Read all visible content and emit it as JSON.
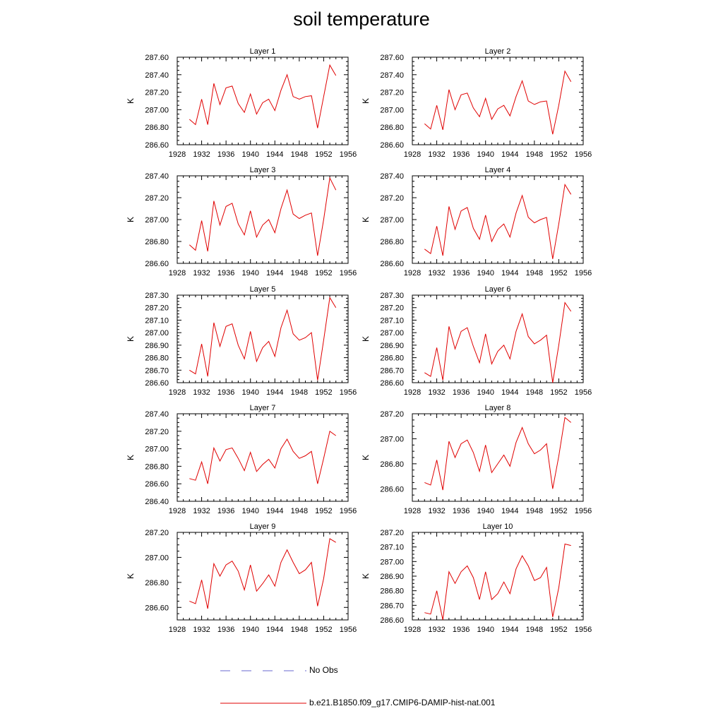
{
  "figure": {
    "title": "soil temperature"
  },
  "legend": {
    "items": [
      {
        "label": "No Obs",
        "color": "#6a6ad0",
        "style": "dashed"
      },
      {
        "label": "b.e21.B1850.f09_g17.CMIP6-DAMIP-hist-nat.001",
        "color": "#e00000",
        "style": "solid"
      }
    ]
  },
  "chart_data": [
    {
      "type": "line",
      "title": "Layer 1",
      "ylabel": "K",
      "xlim": [
        1928,
        1956
      ],
      "ylim": [
        286.6,
        287.6
      ],
      "xticks": [
        "1928",
        "1932",
        "1936",
        "1940",
        "1944",
        "1948",
        "1952",
        "1956"
      ],
      "yticks": [
        "286.60",
        "286.80",
        "287.00",
        "287.20",
        "287.40",
        "287.60"
      ],
      "x": [
        1930,
        1931,
        1932,
        1933,
        1934,
        1935,
        1936,
        1937,
        1938,
        1939,
        1940,
        1941,
        1942,
        1943,
        1944,
        1945,
        1946,
        1947,
        1948,
        1949,
        1950,
        1951,
        1952,
        1953,
        1954
      ],
      "series": [
        {
          "name": "b.e21.B1850.f09_g17.CMIP6-DAMIP-hist-nat.001",
          "color": "#e00000",
          "values": [
            286.89,
            286.83,
            287.12,
            286.83,
            287.3,
            287.06,
            287.25,
            287.27,
            287.07,
            286.97,
            287.18,
            286.95,
            287.08,
            287.12,
            286.99,
            287.22,
            287.4,
            287.15,
            287.12,
            287.15,
            287.16,
            286.79,
            287.15,
            287.51,
            287.39
          ]
        }
      ]
    },
    {
      "type": "line",
      "title": "Layer 2",
      "ylabel": "K",
      "xlim": [
        1928,
        1956
      ],
      "ylim": [
        286.6,
        287.6
      ],
      "xticks": [
        "1928",
        "1932",
        "1936",
        "1940",
        "1944",
        "1948",
        "1952",
        "1956"
      ],
      "yticks": [
        "286.60",
        "286.80",
        "287.00",
        "287.20",
        "287.40",
        "287.60"
      ],
      "x": [
        1930,
        1931,
        1932,
        1933,
        1934,
        1935,
        1936,
        1937,
        1938,
        1939,
        1940,
        1941,
        1942,
        1943,
        1944,
        1945,
        1946,
        1947,
        1948,
        1949,
        1950,
        1951,
        1952,
        1953,
        1954
      ],
      "series": [
        {
          "name": "b.e21.B1850.f09_g17.CMIP6-DAMIP-hist-nat.001",
          "color": "#e00000",
          "values": [
            286.84,
            286.78,
            287.05,
            286.77,
            287.23,
            287.0,
            287.17,
            287.19,
            287.02,
            286.92,
            287.13,
            286.89,
            287.01,
            287.05,
            286.93,
            287.15,
            287.33,
            287.1,
            287.06,
            287.09,
            287.1,
            286.72,
            287.05,
            287.44,
            287.32
          ]
        }
      ]
    },
    {
      "type": "line",
      "title": "Layer 3",
      "ylabel": "K",
      "xlim": [
        1928,
        1956
      ],
      "ylim": [
        286.6,
        287.4
      ],
      "xticks": [
        "1928",
        "1932",
        "1936",
        "1940",
        "1944",
        "1948",
        "1952",
        "1956"
      ],
      "yticks": [
        "286.60",
        "286.80",
        "287.00",
        "287.20",
        "287.40"
      ],
      "x": [
        1930,
        1931,
        1932,
        1933,
        1934,
        1935,
        1936,
        1937,
        1938,
        1939,
        1940,
        1941,
        1942,
        1943,
        1944,
        1945,
        1946,
        1947,
        1948,
        1949,
        1950,
        1951,
        1952,
        1953,
        1954
      ],
      "series": [
        {
          "name": "b.e21.B1850.f09_g17.CMIP6-DAMIP-hist-nat.001",
          "color": "#e00000",
          "values": [
            286.77,
            286.72,
            286.99,
            286.71,
            287.17,
            286.95,
            287.12,
            287.15,
            286.96,
            286.86,
            287.08,
            286.84,
            286.95,
            287.0,
            286.88,
            287.1,
            287.27,
            287.05,
            287.01,
            287.04,
            287.06,
            286.67,
            287.0,
            287.38,
            287.27
          ]
        }
      ]
    },
    {
      "type": "line",
      "title": "Layer 4",
      "ylabel": "K",
      "xlim": [
        1928,
        1956
      ],
      "ylim": [
        286.6,
        287.4
      ],
      "xticks": [
        "1928",
        "1932",
        "1936",
        "1940",
        "1944",
        "1948",
        "1952",
        "1956"
      ],
      "yticks": [
        "286.60",
        "286.80",
        "287.00",
        "287.20",
        "287.40"
      ],
      "x": [
        1930,
        1931,
        1932,
        1933,
        1934,
        1935,
        1936,
        1937,
        1938,
        1939,
        1940,
        1941,
        1942,
        1943,
        1944,
        1945,
        1946,
        1947,
        1948,
        1949,
        1950,
        1951,
        1952,
        1953,
        1954
      ],
      "series": [
        {
          "name": "b.e21.B1850.f09_g17.CMIP6-DAMIP-hist-nat.001",
          "color": "#e00000",
          "values": [
            286.73,
            286.69,
            286.94,
            286.67,
            287.12,
            286.91,
            287.08,
            287.11,
            286.92,
            286.82,
            287.04,
            286.8,
            286.91,
            286.96,
            286.84,
            287.06,
            287.22,
            287.02,
            286.97,
            287.0,
            287.02,
            286.64,
            286.96,
            287.32,
            287.23
          ]
        }
      ]
    },
    {
      "type": "line",
      "title": "Layer 5",
      "ylabel": "K",
      "xlim": [
        1928,
        1956
      ],
      "ylim": [
        286.6,
        287.3
      ],
      "xticks": [
        "1928",
        "1932",
        "1936",
        "1940",
        "1944",
        "1948",
        "1952",
        "1956"
      ],
      "yticks": [
        "286.60",
        "286.70",
        "286.80",
        "286.90",
        "287.00",
        "287.10",
        "287.20",
        "287.30"
      ],
      "x": [
        1930,
        1931,
        1932,
        1933,
        1934,
        1935,
        1936,
        1937,
        1938,
        1939,
        1940,
        1941,
        1942,
        1943,
        1944,
        1945,
        1946,
        1947,
        1948,
        1949,
        1950,
        1951,
        1952,
        1953,
        1954
      ],
      "series": [
        {
          "name": "b.e21.B1850.f09_g17.CMIP6-DAMIP-hist-nat.001",
          "color": "#e00000",
          "values": [
            286.7,
            286.67,
            286.91,
            286.65,
            287.08,
            286.89,
            287.05,
            287.07,
            286.9,
            286.79,
            287.01,
            286.77,
            286.88,
            286.93,
            286.81,
            287.04,
            287.18,
            286.99,
            286.94,
            286.96,
            287.0,
            286.62,
            286.94,
            287.28,
            287.2
          ]
        }
      ]
    },
    {
      "type": "line",
      "title": "Layer 6",
      "ylabel": "K",
      "xlim": [
        1928,
        1956
      ],
      "ylim": [
        286.6,
        287.3
      ],
      "xticks": [
        "1928",
        "1932",
        "1936",
        "1940",
        "1944",
        "1948",
        "1952",
        "1956"
      ],
      "yticks": [
        "286.60",
        "286.70",
        "286.80",
        "286.90",
        "287.00",
        "287.10",
        "287.20",
        "287.30"
      ],
      "x": [
        1930,
        1931,
        1932,
        1933,
        1934,
        1935,
        1936,
        1937,
        1938,
        1939,
        1940,
        1941,
        1942,
        1943,
        1944,
        1945,
        1946,
        1947,
        1948,
        1949,
        1950,
        1951,
        1952,
        1953,
        1954
      ],
      "series": [
        {
          "name": "b.e21.B1850.f09_g17.CMIP6-DAMIP-hist-nat.001",
          "color": "#e00000",
          "values": [
            286.68,
            286.65,
            286.88,
            286.62,
            287.05,
            286.87,
            287.01,
            287.04,
            286.89,
            286.76,
            286.99,
            286.75,
            286.85,
            286.9,
            286.79,
            287.01,
            287.15,
            286.97,
            286.91,
            286.94,
            286.98,
            286.6,
            286.9,
            287.24,
            287.17
          ]
        }
      ]
    },
    {
      "type": "line",
      "title": "Layer 7",
      "ylabel": "K",
      "xlim": [
        1928,
        1956
      ],
      "ylim": [
        286.4,
        287.4
      ],
      "xticks": [
        "1928",
        "1932",
        "1936",
        "1940",
        "1944",
        "1948",
        "1952",
        "1956"
      ],
      "yticks": [
        "286.40",
        "286.60",
        "286.80",
        "287.00",
        "287.20",
        "287.40"
      ],
      "x": [
        1930,
        1931,
        1932,
        1933,
        1934,
        1935,
        1936,
        1937,
        1938,
        1939,
        1940,
        1941,
        1942,
        1943,
        1944,
        1945,
        1946,
        1947,
        1948,
        1949,
        1950,
        1951,
        1952,
        1953,
        1954
      ],
      "series": [
        {
          "name": "b.e21.B1850.f09_g17.CMIP6-DAMIP-hist-nat.001",
          "color": "#e00000",
          "values": [
            286.66,
            286.64,
            286.85,
            286.6,
            287.01,
            286.86,
            286.99,
            287.01,
            286.89,
            286.75,
            286.96,
            286.74,
            286.82,
            286.88,
            286.78,
            287.0,
            287.11,
            286.97,
            286.89,
            286.92,
            286.97,
            286.6,
            286.89,
            287.2,
            287.15
          ]
        }
      ]
    },
    {
      "type": "line",
      "title": "Layer 8",
      "ylabel": "K",
      "xlim": [
        1928,
        1956
      ],
      "ylim": [
        286.5,
        287.2
      ],
      "xticks": [
        "1928",
        "1932",
        "1936",
        "1940",
        "1944",
        "1948",
        "1952",
        "1956"
      ],
      "yticks": [
        "286.60",
        "286.80",
        "287.00",
        "287.20"
      ],
      "x": [
        1930,
        1931,
        1932,
        1933,
        1934,
        1935,
        1936,
        1937,
        1938,
        1939,
        1940,
        1941,
        1942,
        1943,
        1944,
        1945,
        1946,
        1947,
        1948,
        1949,
        1950,
        1951,
        1952,
        1953,
        1954
      ],
      "series": [
        {
          "name": "b.e21.B1850.f09_g17.CMIP6-DAMIP-hist-nat.001",
          "color": "#e00000",
          "values": [
            286.65,
            286.63,
            286.83,
            286.59,
            286.98,
            286.85,
            286.96,
            286.99,
            286.89,
            286.74,
            286.95,
            286.73,
            286.8,
            286.87,
            286.78,
            286.97,
            287.09,
            286.96,
            286.88,
            286.91,
            286.96,
            286.6,
            286.86,
            287.17,
            287.13
          ]
        }
      ]
    },
    {
      "type": "line",
      "title": "Layer 9",
      "ylabel": "K",
      "xlim": [
        1928,
        1956
      ],
      "ylim": [
        286.5,
        287.2
      ],
      "xticks": [
        "1928",
        "1932",
        "1936",
        "1940",
        "1944",
        "1948",
        "1952",
        "1956"
      ],
      "yticks": [
        "286.60",
        "286.80",
        "287.00",
        "287.20"
      ],
      "x": [
        1930,
        1931,
        1932,
        1933,
        1934,
        1935,
        1936,
        1937,
        1938,
        1939,
        1940,
        1941,
        1942,
        1943,
        1944,
        1945,
        1946,
        1947,
        1948,
        1949,
        1950,
        1951,
        1952,
        1953,
        1954
      ],
      "series": [
        {
          "name": "b.e21.B1850.f09_g17.CMIP6-DAMIP-hist-nat.001",
          "color": "#e00000",
          "values": [
            286.65,
            286.63,
            286.82,
            286.59,
            286.95,
            286.85,
            286.94,
            286.97,
            286.89,
            286.74,
            286.94,
            286.73,
            286.79,
            286.86,
            286.77,
            286.96,
            287.06,
            286.96,
            286.87,
            286.9,
            286.96,
            286.61,
            286.83,
            287.15,
            287.12
          ]
        }
      ]
    },
    {
      "type": "line",
      "title": "Layer 10",
      "ylabel": "K",
      "xlim": [
        1928,
        1956
      ],
      "ylim": [
        286.6,
        287.2
      ],
      "xticks": [
        "1928",
        "1932",
        "1936",
        "1940",
        "1944",
        "1948",
        "1952",
        "1956"
      ],
      "yticks": [
        "286.60",
        "286.70",
        "286.80",
        "286.90",
        "287.00",
        "287.10",
        "287.20"
      ],
      "x": [
        1930,
        1931,
        1932,
        1933,
        1934,
        1935,
        1936,
        1937,
        1938,
        1939,
        1940,
        1941,
        1942,
        1943,
        1944,
        1945,
        1946,
        1947,
        1948,
        1949,
        1950,
        1951,
        1952,
        1953,
        1954
      ],
      "series": [
        {
          "name": "b.e21.B1850.f09_g17.CMIP6-DAMIP-hist-nat.001",
          "color": "#e00000",
          "values": [
            286.65,
            286.64,
            286.8,
            286.6,
            286.93,
            286.85,
            286.93,
            286.97,
            286.89,
            286.74,
            286.93,
            286.74,
            286.78,
            286.86,
            286.78,
            286.95,
            287.04,
            286.97,
            286.87,
            286.89,
            286.96,
            286.62,
            286.82,
            287.12,
            287.11
          ]
        }
      ]
    }
  ]
}
